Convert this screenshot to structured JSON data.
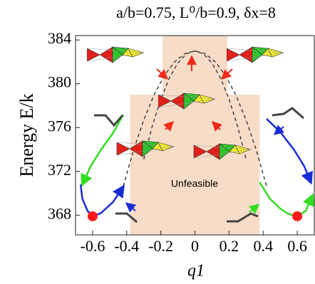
{
  "chart_data": {
    "type": "line",
    "title": "a/b=0.75, L⁰/b=0.9, δx=8",
    "x_label": "q1",
    "y_label": "Energy  E/k",
    "annotation": "Unfeasible",
    "xlim": [
      -0.7,
      0.7
    ],
    "ylim": [
      366.2,
      384.4
    ],
    "xticks": [
      -0.6,
      -0.4,
      -0.2,
      0,
      0.2,
      0.4,
      0.6
    ],
    "yticks": [
      368,
      372,
      376,
      380,
      384
    ],
    "regions": [
      {
        "color": "#f7dcc8",
        "x": [
          -0.19,
          0.19
        ],
        "y": [
          379,
          384.4
        ]
      },
      {
        "color": "#f7dcc8",
        "x": [
          -0.38,
          0.38
        ],
        "y": [
          366.2,
          379
        ]
      }
    ],
    "series": [
      {
        "color": "#444444",
        "dashed": true,
        "x": [
          -0.42,
          -0.36,
          -0.3,
          -0.24,
          -0.18,
          -0.12,
          -0.06,
          0,
          0.06,
          0.12,
          0.18,
          0.24,
          0.3,
          0.36,
          0.42
        ],
        "values": [
          370.65,
          373.93,
          376.7,
          378.97,
          380.73,
          381.99,
          382.75,
          383,
          382.75,
          381.99,
          380.73,
          378.97,
          376.7,
          373.93,
          370.65
        ]
      },
      {
        "color": "#444444",
        "dashed": true,
        "x": [
          -0.3,
          -0.25,
          -0.2,
          -0.15,
          -0.1,
          -0.05,
          0,
          0.05,
          0.1,
          0.15,
          0.2,
          0.25,
          0.3
        ],
        "values": [
          373.1,
          376.13,
          378.6,
          380.53,
          381.9,
          382.73,
          383,
          382.73,
          381.9,
          380.53,
          378.6,
          376.13,
          373.1
        ]
      },
      {
        "color": "#33dd22",
        "x": [
          -0.42,
          -0.48,
          -0.55,
          -0.61,
          -0.66
        ],
        "values": [
          377.2,
          375.5,
          374,
          372.5,
          370.8
        ]
      },
      {
        "color": "#1a2bd6",
        "x": [
          -0.67,
          -0.66,
          -0.63,
          -0.6,
          -0.55,
          -0.48,
          -0.42
        ],
        "values": [
          370.8,
          369.5,
          368.4,
          367.9,
          368.2,
          369.2,
          370.6
        ]
      },
      {
        "color": "#1a2bd6",
        "x": [
          0.42,
          0.5,
          0.58,
          0.64,
          0.68
        ],
        "values": [
          376.8,
          375.6,
          374,
          372.5,
          371
        ]
      },
      {
        "color": "#33dd22",
        "x": [
          0.38,
          0.44,
          0.5,
          0.55,
          0.6,
          0.65,
          0.69
        ],
        "values": [
          371,
          369.5,
          368.6,
          368.1,
          367.9,
          368.4,
          369.8
        ]
      }
    ],
    "points": {
      "color": "#ff1a1a",
      "x": [
        -0.6,
        0.6
      ],
      "values": [
        367.9,
        367.9
      ]
    }
  }
}
